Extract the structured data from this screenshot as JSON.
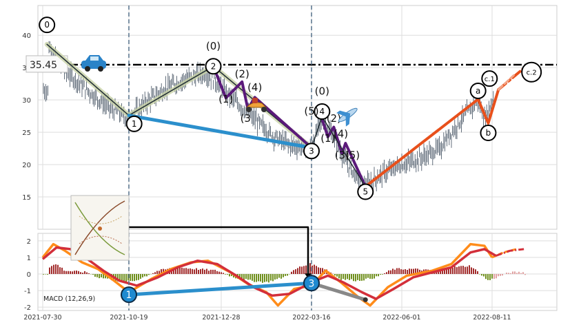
{
  "chart_data": [
    {
      "type": "candlestick",
      "title": "",
      "xlabel": "",
      "ylabel": "",
      "ylim": [
        10,
        44.6
      ],
      "yticks": [
        15,
        20,
        25,
        30,
        35,
        40
      ],
      "grid": true,
      "resistance_level": 35.45,
      "resistance_label": "35.45",
      "price_path": [
        {
          "x": "2021-08-04",
          "y": 38.4
        },
        {
          "x": "2021-08-19",
          "y": 34.6
        },
        {
          "x": "2021-09-03",
          "y": 32.5
        },
        {
          "x": "2021-09-18",
          "y": 30.4
        },
        {
          "x": "2021-10-03",
          "y": 28.6
        },
        {
          "x": "2021-10-18",
          "y": 27.2
        },
        {
          "x": "2021-11-01",
          "y": 29.6
        },
        {
          "x": "2021-11-16",
          "y": 31.8
        },
        {
          "x": "2021-12-01",
          "y": 33.2
        },
        {
          "x": "2021-12-16",
          "y": 34.2
        },
        {
          "x": "2021-12-28",
          "y": 32.0
        },
        {
          "x": "2022-01-11",
          "y": 29.5
        },
        {
          "x": "2022-01-26",
          "y": 27.0
        },
        {
          "x": "2022-02-10",
          "y": 24.5
        },
        {
          "x": "2022-02-25",
          "y": 23.0
        },
        {
          "x": "2022-03-15",
          "y": 22.6
        },
        {
          "x": "2022-03-25",
          "y": 27.0
        },
        {
          "x": "2022-04-03",
          "y": 24.5
        },
        {
          "x": "2022-04-16",
          "y": 20.0
        },
        {
          "x": "2022-04-30",
          "y": 16.5
        },
        {
          "x": "2022-05-15",
          "y": 18.5
        },
        {
          "x": "2022-06-01",
          "y": 20.0
        },
        {
          "x": "2022-06-16",
          "y": 21.0
        },
        {
          "x": "2022-07-01",
          "y": 22.5
        },
        {
          "x": "2022-07-16",
          "y": 26.5
        },
        {
          "x": "2022-07-31",
          "y": 30.0
        },
        {
          "x": "2022-08-05",
          "y": 27.0
        },
        {
          "x": "2022-08-15",
          "y": 31.5
        }
      ],
      "wave_labels": [
        {
          "text": "0",
          "x": "2021-08-03",
          "y": 41.6,
          "circled": true
        },
        {
          "text": "1",
          "x": "2021-10-23",
          "y": 26.3,
          "circled": true
        },
        {
          "text": "2",
          "x": "2021-12-22",
          "y": 35.2,
          "circled": true
        },
        {
          "text": "3",
          "x": "2022-03-16",
          "y": 22.1,
          "circled": true
        },
        {
          "text": "4",
          "x": "2022-03-25",
          "y": 28.2,
          "circled": true
        },
        {
          "text": "5",
          "x": "2022-05-01",
          "y": 15.8,
          "circled": true
        },
        {
          "text": "a",
          "x": "2022-07-31",
          "y": 31.4,
          "circled": true
        },
        {
          "text": "b",
          "x": "2022-08-08",
          "y": 24.9,
          "circled": true
        },
        {
          "text": "c.1",
          "x": "2022-08-09",
          "y": 33.3,
          "circled": true
        },
        {
          "text": "c.2",
          "x": "2022-09-11",
          "y": 34.3,
          "circled": true
        },
        {
          "text": "(0)",
          "x": "2021-12-22",
          "y": 37.8,
          "circled": false
        },
        {
          "text": "(1)",
          "x": "2022-01-01",
          "y": 29.6,
          "circled": false
        },
        {
          "text": "(2)",
          "x": "2022-01-15",
          "y": 33.5,
          "circled": false
        },
        {
          "text": "(3",
          "x": "2022-01-18",
          "y": 26.6,
          "circled": false
        },
        {
          "text": "(4)",
          "x": "2022-01-26",
          "y": 31.4,
          "circled": false
        },
        {
          "text": "(5)",
          "x": "2022-03-16",
          "y": 27.7,
          "circled": false
        },
        {
          "text": "(0)",
          "x": "2022-03-25",
          "y": 30.8,
          "circled": false
        },
        {
          "text": "(2)",
          "x": "2022-04-04",
          "y": 26.6,
          "circled": false
        },
        {
          "text": "(1)",
          "x": "2022-03-30",
          "y": 23.5,
          "circled": false
        },
        {
          "text": "(4)",
          "x": "2022-04-10",
          "y": 24.2,
          "circled": false
        },
        {
          "text": "(3)",
          "x": "2022-04-11",
          "y": 20.9,
          "circled": false
        },
        {
          "text": "(5)",
          "x": "2022-04-20",
          "y": 20.9,
          "circled": false
        }
      ]
    },
    {
      "type": "line+bar",
      "title": "",
      "legend_label": "MACD (12,26,9)",
      "x_tick_labels": [
        "2021-07-30",
        "2021-10-19",
        "2021-12-28",
        "2022-03-16",
        "2022-06-01",
        "2022-08-11"
      ],
      "ylim": [
        -2.2,
        2.45
      ],
      "yticks": [
        -2,
        -1,
        0,
        1,
        2
      ],
      "grid": true,
      "macd": [
        {
          "x": "2021-07-30",
          "y": 1.0
        },
        {
          "x": "2021-08-09",
          "y": 1.8
        },
        {
          "x": "2021-08-20",
          "y": 1.4
        },
        {
          "x": "2021-09-05",
          "y": 0.7
        },
        {
          "x": "2021-09-20",
          "y": 0.3
        },
        {
          "x": "2021-10-05",
          "y": -0.4
        },
        {
          "x": "2021-10-19",
          "y": -1.1
        },
        {
          "x": "2021-11-05",
          "y": -0.3
        },
        {
          "x": "2021-11-20",
          "y": 0.3
        },
        {
          "x": "2021-12-05",
          "y": 0.7
        },
        {
          "x": "2021-12-18",
          "y": 0.8
        },
        {
          "x": "2022-01-05",
          "y": 0.1
        },
        {
          "x": "2022-01-20",
          "y": -0.6
        },
        {
          "x": "2022-02-05",
          "y": -1.1
        },
        {
          "x": "2022-02-15",
          "y": -1.9
        },
        {
          "x": "2022-03-01",
          "y": -0.9
        },
        {
          "x": "2022-03-16",
          "y": -0.7
        },
        {
          "x": "2022-03-28",
          "y": 0.2
        },
        {
          "x": "2022-04-10",
          "y": -0.5
        },
        {
          "x": "2022-04-25",
          "y": -1.4
        },
        {
          "x": "2022-05-05",
          "y": -1.9
        },
        {
          "x": "2022-05-20",
          "y": -0.8
        },
        {
          "x": "2022-06-05",
          "y": -0.1
        },
        {
          "x": "2022-06-25",
          "y": 0.2
        },
        {
          "x": "2022-07-10",
          "y": 0.6
        },
        {
          "x": "2022-07-25",
          "y": 1.8
        },
        {
          "x": "2022-08-05",
          "y": 1.7
        },
        {
          "x": "2022-08-11",
          "y": 1.0
        },
        {
          "x": "2022-08-20",
          "y": 1.3
        },
        {
          "x": "2022-08-30",
          "y": 1.5
        }
      ],
      "signal": [
        {
          "x": "2021-07-30",
          "y": 0.9
        },
        {
          "x": "2021-08-12",
          "y": 1.6
        },
        {
          "x": "2021-08-25",
          "y": 1.5
        },
        {
          "x": "2021-09-10",
          "y": 0.9
        },
        {
          "x": "2021-09-25",
          "y": 0.2
        },
        {
          "x": "2021-10-10",
          "y": -0.4
        },
        {
          "x": "2021-10-25",
          "y": -0.7
        },
        {
          "x": "2021-11-10",
          "y": -0.2
        },
        {
          "x": "2021-11-25",
          "y": 0.4
        },
        {
          "x": "2021-12-10",
          "y": 0.8
        },
        {
          "x": "2021-12-25",
          "y": 0.6
        },
        {
          "x": "2022-01-10",
          "y": -0.1
        },
        {
          "x": "2022-01-25",
          "y": -0.8
        },
        {
          "x": "2022-02-10",
          "y": -1.3
        },
        {
          "x": "2022-02-25",
          "y": -1.2
        },
        {
          "x": "2022-03-16",
          "y": -0.5
        },
        {
          "x": "2022-03-30",
          "y": -0.1
        },
        {
          "x": "2022-04-12",
          "y": -0.5
        },
        {
          "x": "2022-04-28",
          "y": -1.1
        },
        {
          "x": "2022-05-10",
          "y": -1.5
        },
        {
          "x": "2022-05-25",
          "y": -0.9
        },
        {
          "x": "2022-06-10",
          "y": -0.2
        },
        {
          "x": "2022-06-25",
          "y": 0.1
        },
        {
          "x": "2022-07-10",
          "y": 0.4
        },
        {
          "x": "2022-07-25",
          "y": 1.3
        },
        {
          "x": "2022-08-05",
          "y": 1.5
        },
        {
          "x": "2022-08-14",
          "y": 1.1
        },
        {
          "x": "2022-08-25",
          "y": 1.4
        },
        {
          "x": "2022-09-05",
          "y": 1.5
        }
      ],
      "histogram": [
        {
          "x": "2021-08-04",
          "y": 0.4
        },
        {
          "x": "2021-08-12",
          "y": 0.6
        },
        {
          "x": "2021-08-20",
          "y": 0.2
        },
        {
          "x": "2021-09-10",
          "y": 0.1
        },
        {
          "x": "2021-09-20",
          "y": -0.2
        },
        {
          "x": "2021-10-01",
          "y": -0.3
        },
        {
          "x": "2021-10-12",
          "y": -0.5
        },
        {
          "x": "2021-10-24",
          "y": -0.4
        },
        {
          "x": "2021-11-10",
          "y": 0.2
        },
        {
          "x": "2021-11-25",
          "y": 0.4
        },
        {
          "x": "2021-12-10",
          "y": 0.3
        },
        {
          "x": "2021-12-25",
          "y": 0.2
        },
        {
          "x": "2022-01-08",
          "y": -0.2
        },
        {
          "x": "2022-01-22",
          "y": -0.4
        },
        {
          "x": "2022-02-05",
          "y": -0.5
        },
        {
          "x": "2022-02-20",
          "y": -0.2
        },
        {
          "x": "2022-03-05",
          "y": 0.4
        },
        {
          "x": "2022-03-15",
          "y": 0.6
        },
        {
          "x": "2022-03-28",
          "y": 0.3
        },
        {
          "x": "2022-04-10",
          "y": -0.3
        },
        {
          "x": "2022-04-25",
          "y": -0.4
        },
        {
          "x": "2022-05-10",
          "y": -0.2
        },
        {
          "x": "2022-05-25",
          "y": 0.3
        },
        {
          "x": "2022-06-10",
          "y": 0.3
        },
        {
          "x": "2022-06-25",
          "y": 0.2
        },
        {
          "x": "2022-07-10",
          "y": 0.4
        },
        {
          "x": "2022-07-25",
          "y": 0.5
        },
        {
          "x": "2022-08-08",
          "y": -0.4
        },
        {
          "x": "2022-08-25",
          "y": 0.1
        },
        {
          "x": "2022-09-05",
          "y": 0.1
        }
      ],
      "markers": [
        {
          "text": "1",
          "x": "2021-10-19",
          "y": -1.25
        },
        {
          "text": "3",
          "x": "2022-03-16",
          "y": -0.55
        }
      ]
    }
  ]
}
